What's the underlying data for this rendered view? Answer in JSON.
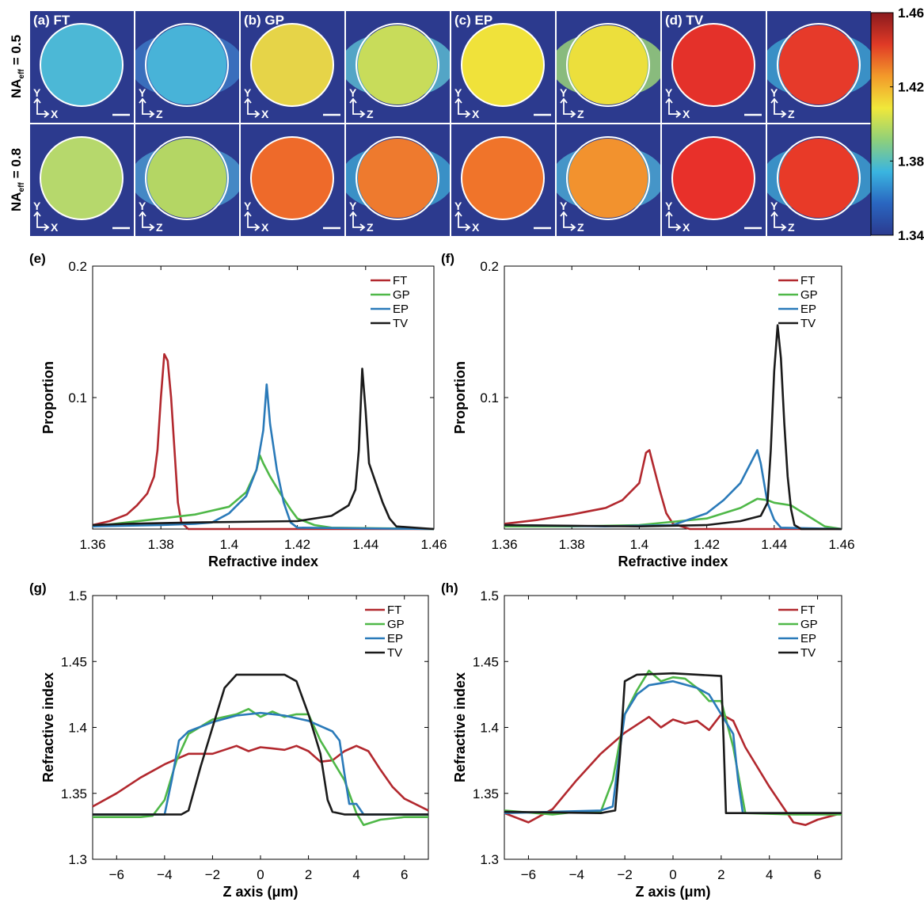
{
  "axis_letters": {
    "y": "Y",
    "x": "X",
    "z": "Z"
  },
  "row_labels": [
    {
      "main": "NA",
      "sub": "eff",
      "rest": "= 0.5"
    },
    {
      "main": "NA",
      "sub": "eff",
      "rest": "= 0.8"
    }
  ],
  "image_panels": [
    {
      "label": "(a) FT",
      "rows": [
        {
          "xy_color": "#4cb8d6",
          "yz_color": "#48b3d8",
          "yz_halo": "#3d78c4"
        },
        {
          "xy_color": "#b6d86c",
          "yz_color": "#b4d664",
          "yz_halo": "#4a96cf"
        }
      ]
    },
    {
      "label": "(b) GP",
      "rows": [
        {
          "xy_color": "#e6d448",
          "yz_color": "#c8dc5a",
          "yz_halo": "#5ab8d0"
        },
        {
          "xy_color": "#ee6a2a",
          "yz_color": "#ee7a2e",
          "yz_halo": "#3da0d0"
        }
      ]
    },
    {
      "label": "(c) EP",
      "rows": [
        {
          "xy_color": "#f0e23a",
          "yz_color": "#ecdf3c",
          "yz_halo": "#9ad27a"
        },
        {
          "xy_color": "#f0742a",
          "yz_color": "#f2922e",
          "yz_halo": "#4aa6d2"
        }
      ]
    },
    {
      "label": "(d) TV",
      "rows": [
        {
          "xy_color": "#e4312a",
          "yz_color": "#e63a2a",
          "yz_halo": "#3da0d0"
        },
        {
          "xy_color": "#e8302a",
          "yz_color": "#e83a28",
          "yz_halo": "#3da0d0"
        }
      ]
    }
  ],
  "chart_data": [
    {
      "type": "colorbar",
      "ylim": [
        1.34,
        1.46
      ],
      "yticks": [
        1.34,
        1.38,
        1.42,
        1.46
      ],
      "colors": [
        "#2b3a8f",
        "#2a66c0",
        "#3ab5e0",
        "#8fd07a",
        "#f0e83a",
        "#f39a2a",
        "#e03a26",
        "#8a1a1e"
      ]
    },
    {
      "type": "line",
      "label": "(e)",
      "xlabel": "Refractive index",
      "ylabel": "Proportion",
      "xlim": [
        1.36,
        1.46
      ],
      "ylim": [
        0,
        0.2
      ],
      "xticks": [
        1.36,
        1.38,
        1.4,
        1.42,
        1.44,
        1.46
      ],
      "yticks": [
        0.1,
        0.2
      ],
      "series": [
        {
          "name": "FT",
          "color": "#b2282e",
          "x": [
            1.36,
            1.365,
            1.37,
            1.373,
            1.376,
            1.378,
            1.379,
            1.38,
            1.381,
            1.382,
            1.383,
            1.384,
            1.385,
            1.386,
            1.388,
            1.46
          ],
          "values": [
            0.003,
            0.006,
            0.011,
            0.018,
            0.027,
            0.04,
            0.06,
            0.1,
            0.133,
            0.128,
            0.1,
            0.06,
            0.02,
            0.005,
            0,
            0
          ]
        },
        {
          "name": "GP",
          "color": "#4fb848",
          "x": [
            1.36,
            1.37,
            1.38,
            1.39,
            1.4,
            1.405,
            1.408,
            1.409,
            1.41,
            1.412,
            1.415,
            1.418,
            1.42,
            1.425,
            1.43,
            1.46
          ],
          "values": [
            0.002,
            0.005,
            0.008,
            0.011,
            0.017,
            0.028,
            0.045,
            0.056,
            0.05,
            0.04,
            0.027,
            0.015,
            0.008,
            0.003,
            0.001,
            0
          ]
        },
        {
          "name": "EP",
          "color": "#2a7ab9",
          "x": [
            1.36,
            1.38,
            1.39,
            1.395,
            1.4,
            1.405,
            1.408,
            1.41,
            1.411,
            1.412,
            1.414,
            1.416,
            1.418,
            1.42,
            1.46
          ],
          "values": [
            0.002,
            0.003,
            0.004,
            0.005,
            0.012,
            0.025,
            0.045,
            0.075,
            0.11,
            0.08,
            0.045,
            0.02,
            0.005,
            0.001,
            0
          ]
        },
        {
          "name": "TV",
          "color": "#1a1a1a",
          "x": [
            1.36,
            1.37,
            1.39,
            1.42,
            1.43,
            1.435,
            1.437,
            1.438,
            1.439,
            1.44,
            1.441,
            1.443,
            1.445,
            1.447,
            1.449,
            1.46
          ],
          "values": [
            0.003,
            0.004,
            0.005,
            0.006,
            0.01,
            0.018,
            0.03,
            0.06,
            0.122,
            0.09,
            0.05,
            0.035,
            0.02,
            0.008,
            0.002,
            0
          ]
        }
      ]
    },
    {
      "type": "line",
      "label": "(f)",
      "xlabel": "Refractive index",
      "ylabel": "Proportion",
      "xlim": [
        1.36,
        1.46
      ],
      "ylim": [
        0,
        0.2
      ],
      "xticks": [
        1.36,
        1.38,
        1.4,
        1.42,
        1.44,
        1.46
      ],
      "yticks": [
        0.1,
        0.2
      ],
      "series": [
        {
          "name": "FT",
          "color": "#b2282e",
          "x": [
            1.36,
            1.37,
            1.38,
            1.39,
            1.395,
            1.4,
            1.402,
            1.403,
            1.404,
            1.406,
            1.408,
            1.41,
            1.415,
            1.46
          ],
          "values": [
            0.004,
            0.007,
            0.011,
            0.016,
            0.022,
            0.035,
            0.058,
            0.06,
            0.05,
            0.03,
            0.012,
            0.004,
            0,
            0
          ]
        },
        {
          "name": "GP",
          "color": "#4fb848",
          "x": [
            1.36,
            1.38,
            1.4,
            1.42,
            1.43,
            1.435,
            1.438,
            1.44,
            1.445,
            1.45,
            1.455,
            1.46
          ],
          "values": [
            0.002,
            0.002,
            0.003,
            0.008,
            0.016,
            0.023,
            0.022,
            0.02,
            0.018,
            0.01,
            0.002,
            0
          ]
        },
        {
          "name": "EP",
          "color": "#2a7ab9",
          "x": [
            1.36,
            1.39,
            1.41,
            1.42,
            1.425,
            1.43,
            1.433,
            1.435,
            1.436,
            1.438,
            1.44,
            1.442,
            1.46
          ],
          "values": [
            0.003,
            0.002,
            0.003,
            0.012,
            0.022,
            0.035,
            0.05,
            0.06,
            0.05,
            0.02,
            0.007,
            0.001,
            0
          ]
        },
        {
          "name": "TV",
          "color": "#1a1a1a",
          "x": [
            1.36,
            1.4,
            1.42,
            1.43,
            1.436,
            1.438,
            1.439,
            1.44,
            1.441,
            1.442,
            1.443,
            1.444,
            1.445,
            1.446,
            1.448,
            1.46
          ],
          "values": [
            0.003,
            0.002,
            0.003,
            0.006,
            0.01,
            0.02,
            0.06,
            0.12,
            0.155,
            0.13,
            0.08,
            0.04,
            0.015,
            0.003,
            0,
            0
          ]
        }
      ]
    },
    {
      "type": "line",
      "label": "(g)",
      "xlabel": "Z axis (μm)",
      "ylabel": "Refractive index",
      "xlim": [
        -7,
        7
      ],
      "ylim": [
        1.3,
        1.5
      ],
      "xticks": [
        {
          "value": -6,
          "label": "−6"
        },
        {
          "value": -4,
          "label": "−4"
        },
        {
          "value": -2,
          "label": "−2"
        },
        0,
        2,
        4,
        6
      ],
      "yticks": [
        1.3,
        1.35,
        1.4,
        1.45,
        1.5
      ],
      "series": [
        {
          "name": "FT",
          "color": "#b2282e",
          "x": [
            -7,
            -6,
            -5,
            -4,
            -3,
            -2,
            -1.5,
            -1,
            -0.5,
            0,
            0.5,
            1,
            1.5,
            2,
            2.5,
            3,
            3.5,
            4,
            4.5,
            5,
            5.5,
            6,
            7
          ],
          "values": [
            1.34,
            1.35,
            1.362,
            1.372,
            1.38,
            1.38,
            1.383,
            1.386,
            1.382,
            1.385,
            1.384,
            1.383,
            1.386,
            1.382,
            1.374,
            1.375,
            1.382,
            1.386,
            1.382,
            1.368,
            1.355,
            1.346,
            1.337
          ]
        },
        {
          "name": "GP",
          "color": "#4fb848",
          "x": [
            -7,
            -5,
            -4.5,
            -4,
            -3.5,
            -3,
            -2,
            -1,
            -0.5,
            0,
            0.5,
            1,
            1.5,
            2,
            2.5,
            3,
            3.5,
            4,
            4.3,
            5,
            6,
            7
          ],
          "values": [
            1.332,
            1.332,
            1.333,
            1.345,
            1.375,
            1.395,
            1.406,
            1.41,
            1.414,
            1.408,
            1.412,
            1.408,
            1.41,
            1.41,
            1.39,
            1.375,
            1.36,
            1.335,
            1.326,
            1.33,
            1.332,
            1.332
          ]
        },
        {
          "name": "EP",
          "color": "#2a7ab9",
          "x": [
            -7,
            -4,
            -3.7,
            -3.4,
            -3,
            -2,
            -1,
            0,
            1,
            2,
            3,
            3.3,
            3.5,
            3.7,
            4,
            4.3,
            7
          ],
          "values": [
            1.334,
            1.334,
            1.36,
            1.39,
            1.397,
            1.404,
            1.409,
            1.411,
            1.409,
            1.405,
            1.397,
            1.39,
            1.365,
            1.342,
            1.342,
            1.334,
            1.334
          ]
        },
        {
          "name": "TV",
          "color": "#1a1a1a",
          "x": [
            -7,
            -3.3,
            -3,
            -2.5,
            -2,
            -1.5,
            -1,
            1,
            1.5,
            2,
            2.5,
            2.8,
            3,
            3.5,
            7
          ],
          "values": [
            1.334,
            1.334,
            1.337,
            1.37,
            1.4,
            1.43,
            1.44,
            1.44,
            1.435,
            1.41,
            1.38,
            1.345,
            1.336,
            1.334,
            1.334
          ]
        }
      ]
    },
    {
      "type": "line",
      "label": "(h)",
      "xlabel": "Z axis (μm)",
      "ylabel": "Refractive index",
      "xlim": [
        -7,
        7
      ],
      "ylim": [
        1.3,
        1.5
      ],
      "xticks": [
        {
          "value": -6,
          "label": "−6"
        },
        {
          "value": -4,
          "label": "−4"
        },
        {
          "value": -2,
          "label": "−2"
        },
        0,
        2,
        4,
        6
      ],
      "yticks": [
        1.3,
        1.35,
        1.4,
        1.45,
        1.5
      ],
      "series": [
        {
          "name": "FT",
          "color": "#b2282e",
          "x": [
            -7,
            -6,
            -5,
            -4,
            -3,
            -2,
            -1,
            -0.5,
            0,
            0.5,
            1,
            1.5,
            2,
            2.5,
            3,
            4,
            5,
            5.5,
            6,
            7
          ],
          "values": [
            1.335,
            1.328,
            1.338,
            1.36,
            1.38,
            1.396,
            1.408,
            1.4,
            1.406,
            1.403,
            1.405,
            1.398,
            1.41,
            1.405,
            1.385,
            1.355,
            1.328,
            1.326,
            1.33,
            1.335
          ]
        },
        {
          "name": "GP",
          "color": "#4fb848",
          "x": [
            -7,
            -5,
            -4,
            -3,
            -2.5,
            -2,
            -1.5,
            -1,
            -0.5,
            0,
            0.5,
            1,
            1.5,
            2,
            2.5,
            3,
            5,
            7
          ],
          "values": [
            1.337,
            1.334,
            1.336,
            1.336,
            1.36,
            1.41,
            1.428,
            1.443,
            1.435,
            1.438,
            1.437,
            1.43,
            1.42,
            1.42,
            1.385,
            1.335,
            1.334,
            1.334
          ]
        },
        {
          "name": "EP",
          "color": "#2a7ab9",
          "x": [
            -7,
            -3,
            -2.5,
            -2.3,
            -2,
            -1.5,
            -1,
            0,
            1,
            1.5,
            2,
            2.5,
            2.7,
            2.9,
            7
          ],
          "values": [
            1.335,
            1.337,
            1.34,
            1.37,
            1.41,
            1.425,
            1.432,
            1.435,
            1.43,
            1.425,
            1.41,
            1.395,
            1.36,
            1.335,
            1.335
          ]
        },
        {
          "name": "TV",
          "color": "#1a1a1a",
          "x": [
            -7,
            -3,
            -2.4,
            -2.2,
            -2,
            -1.5,
            0,
            2,
            2.1,
            2.2,
            7
          ],
          "values": [
            1.336,
            1.335,
            1.337,
            1.38,
            1.435,
            1.44,
            1.441,
            1.439,
            1.39,
            1.335,
            1.335
          ]
        }
      ]
    }
  ]
}
